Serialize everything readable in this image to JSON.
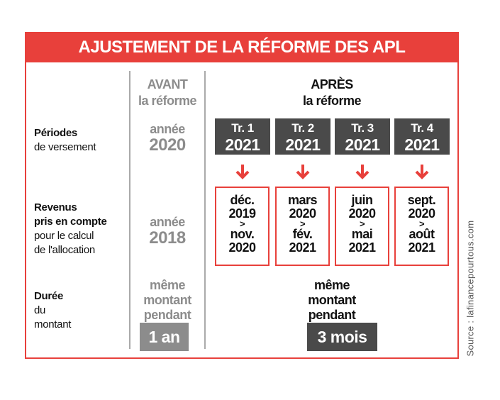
{
  "title": "AJUSTEMENT DE LA RÉFORME DES APL",
  "rows": {
    "periodes": {
      "bold": "Périodes",
      "normal": "de versement"
    },
    "revenus": {
      "bold1": "Revenus",
      "bold2": "pris en compte",
      "normal1": "pour le calcul",
      "normal2": "de l'allocation"
    },
    "duree": {
      "bold": "Durée",
      "normal1": "du",
      "normal2": "montant"
    }
  },
  "avant": {
    "title": "AVANT",
    "subtitle": "la réforme",
    "periode_l1": "année",
    "periode_l2": "2020",
    "revenus_l1": "année",
    "revenus_l2": "2018",
    "duree_l1": "même",
    "duree_l2": "montant",
    "duree_l3": "pendant",
    "duree_value": "1 an"
  },
  "apres": {
    "title": "APRÈS",
    "subtitle": "la réforme",
    "duree_l1": "même",
    "duree_l2": "montant",
    "duree_l3": "pendant",
    "duree_value": "3 mois",
    "trimestres": [
      {
        "tr": "Tr. 1",
        "year": "2021",
        "from_m": "déc.",
        "from_y": "2019",
        "sep": ">",
        "to_m": "nov.",
        "to_y": "2020"
      },
      {
        "tr": "Tr. 2",
        "year": "2021",
        "from_m": "mars",
        "from_y": "2020",
        "sep": ">",
        "to_m": "fév.",
        "to_y": "2021"
      },
      {
        "tr": "Tr. 3",
        "year": "2021",
        "from_m": "juin",
        "from_y": "2020",
        "sep": ">",
        "to_m": "mai",
        "to_y": "2021"
      },
      {
        "tr": "Tr. 4",
        "year": "2021",
        "from_m": "sept.",
        "from_y": "2020",
        "sep": ">",
        "to_m": "août",
        "to_y": "2021"
      }
    ]
  },
  "source": "Source : lafinancepourtous.com",
  "colors": {
    "red": "#e8403b",
    "dark": "#4a4a4a",
    "grey": "#8c8c8c"
  }
}
